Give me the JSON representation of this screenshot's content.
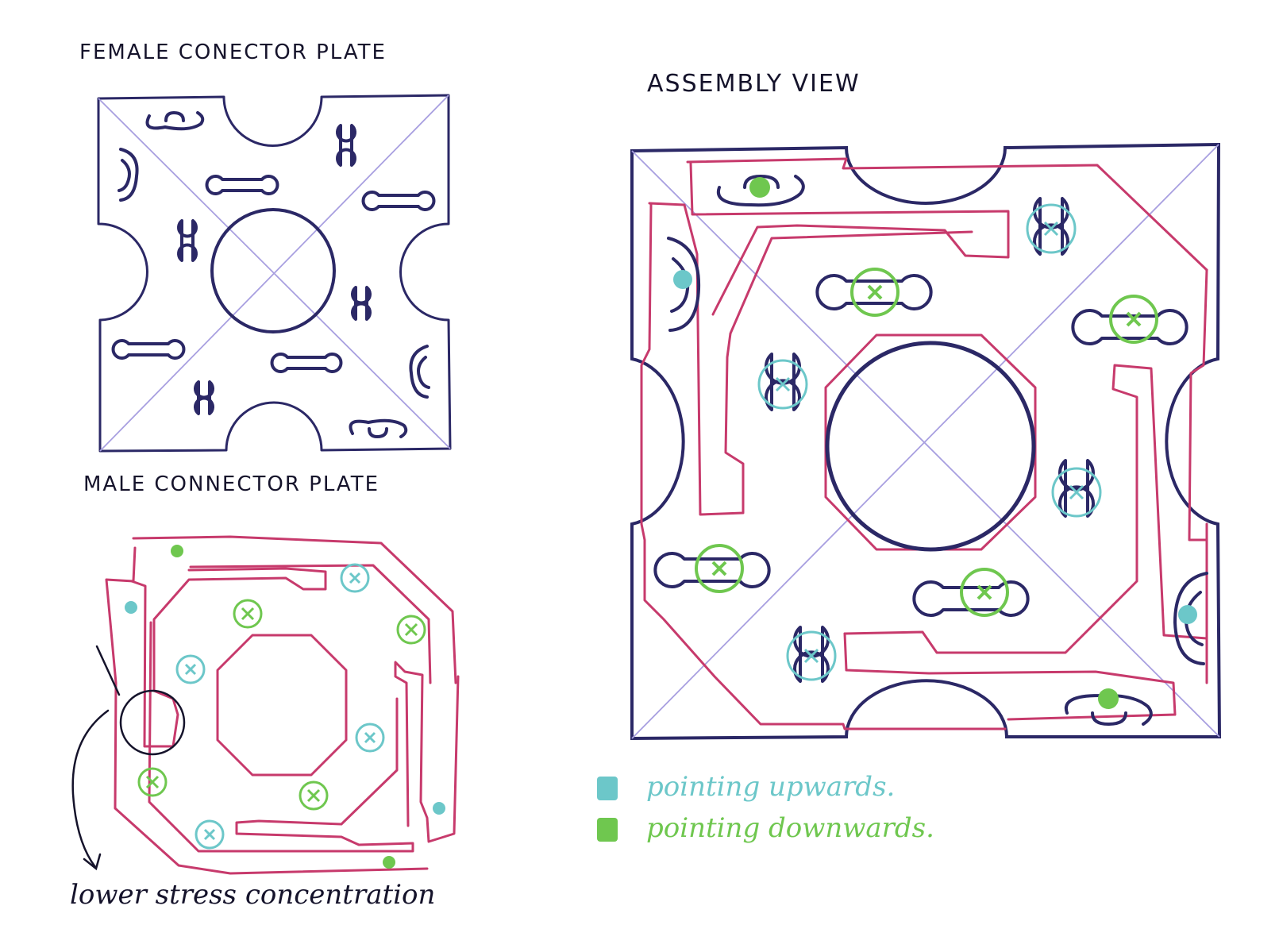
{
  "labels": {
    "female_plate_title": "FEMALE CONECTOR PLATE",
    "male_plate_title": "MALE CONNECTOR PLATE",
    "assembly_title": "ASSEMBLY VIEW",
    "stress_note": "lower stress concentration"
  },
  "legend": {
    "up_label": "pointing upwards.",
    "down_label": "pointing downwards."
  },
  "colors": {
    "plate_outline": "#2b2866",
    "male_plate": "#c73a6c",
    "pointing_up": "#6cc7c9",
    "pointing_down": "#6fc74f",
    "diagonals": "#a89fe0"
  }
}
